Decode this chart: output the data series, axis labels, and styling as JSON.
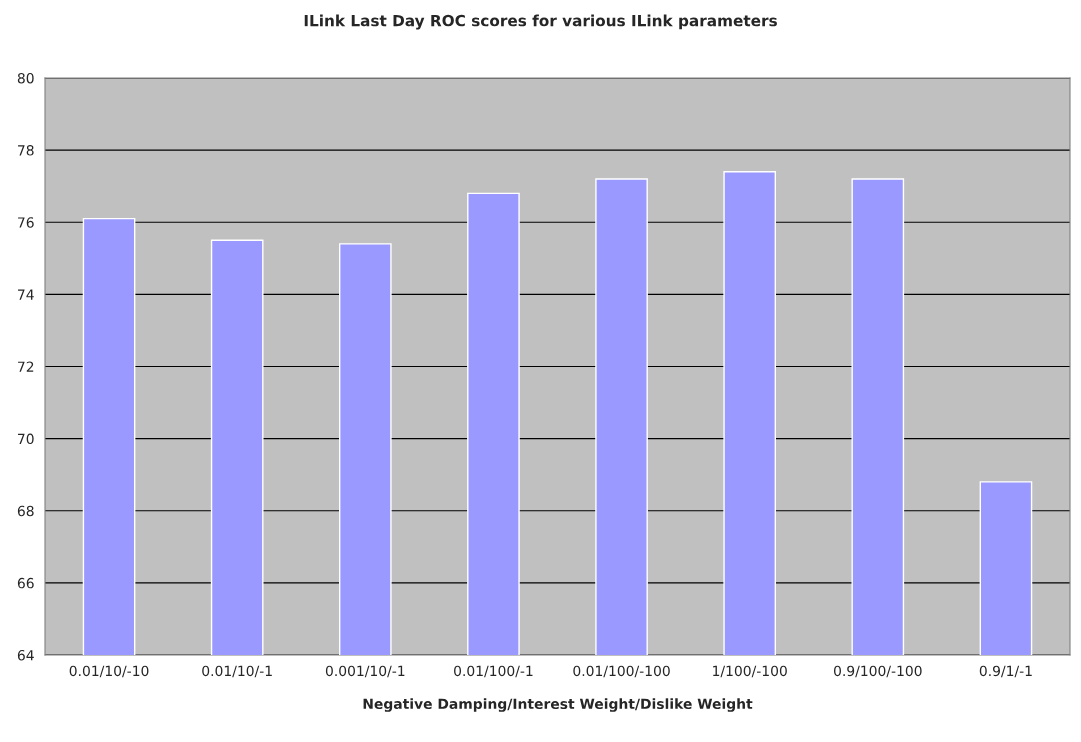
{
  "chart_data": {
    "type": "bar",
    "title": "ILink Last Day ROC scores for various ILink parameters",
    "xlabel": "Negative Damping/Interest Weight/Dislike Weight",
    "categories": [
      "0.01/10/-10",
      "0.01/10/-1",
      "0.001/10/-1",
      "0.01/100/-1",
      "0.01/100/-100",
      "1/100/-100",
      "0.9/100/-100",
      "0.9/1/-1"
    ],
    "values": [
      76.1,
      75.5,
      75.4,
      76.8,
      77.2,
      77.4,
      77.2,
      68.8
    ],
    "color": "#9999ff",
    "ylim": [
      64,
      80
    ],
    "yticks": [
      64,
      66,
      68,
      70,
      72,
      74,
      76,
      78,
      80
    ],
    "grid": "y"
  }
}
